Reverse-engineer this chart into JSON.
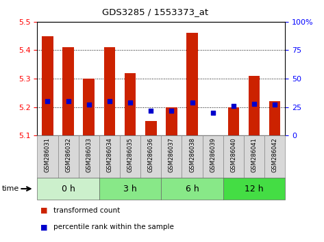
{
  "title": "GDS3285 / 1553373_at",
  "samples": [
    "GSM286031",
    "GSM286032",
    "GSM286033",
    "GSM286034",
    "GSM286035",
    "GSM286036",
    "GSM286037",
    "GSM286038",
    "GSM286039",
    "GSM286040",
    "GSM286041",
    "GSM286042"
  ],
  "transformed_count": [
    5.45,
    5.41,
    5.3,
    5.41,
    5.32,
    5.15,
    5.2,
    5.46,
    5.1,
    5.2,
    5.31,
    5.22
  ],
  "bar_base": 5.1,
  "percentile_rank": [
    30,
    30,
    27,
    30,
    29,
    22,
    22,
    29,
    20,
    26,
    28,
    27
  ],
  "left_ylim": [
    5.1,
    5.5
  ],
  "left_yticks": [
    5.1,
    5.2,
    5.3,
    5.4,
    5.5
  ],
  "right_ylim": [
    0,
    100
  ],
  "right_yticks": [
    0,
    25,
    50,
    75,
    100
  ],
  "right_yticklabels": [
    "0",
    "25",
    "50",
    "75",
    "100%"
  ],
  "group_defs": [
    {
      "start": 0,
      "end": 2,
      "label": "0 h",
      "color": "#ccf0cc"
    },
    {
      "start": 3,
      "end": 5,
      "label": "3 h",
      "color": "#88e888"
    },
    {
      "start": 6,
      "end": 8,
      "label": "6 h",
      "color": "#88e888"
    },
    {
      "start": 9,
      "end": 11,
      "label": "12 h",
      "color": "#44dd44"
    }
  ],
  "bar_color": "#cc2200",
  "percentile_color": "#0000cc",
  "time_label": "time",
  "legend_items": [
    "transformed count",
    "percentile rank within the sample"
  ],
  "bar_width": 0.55
}
